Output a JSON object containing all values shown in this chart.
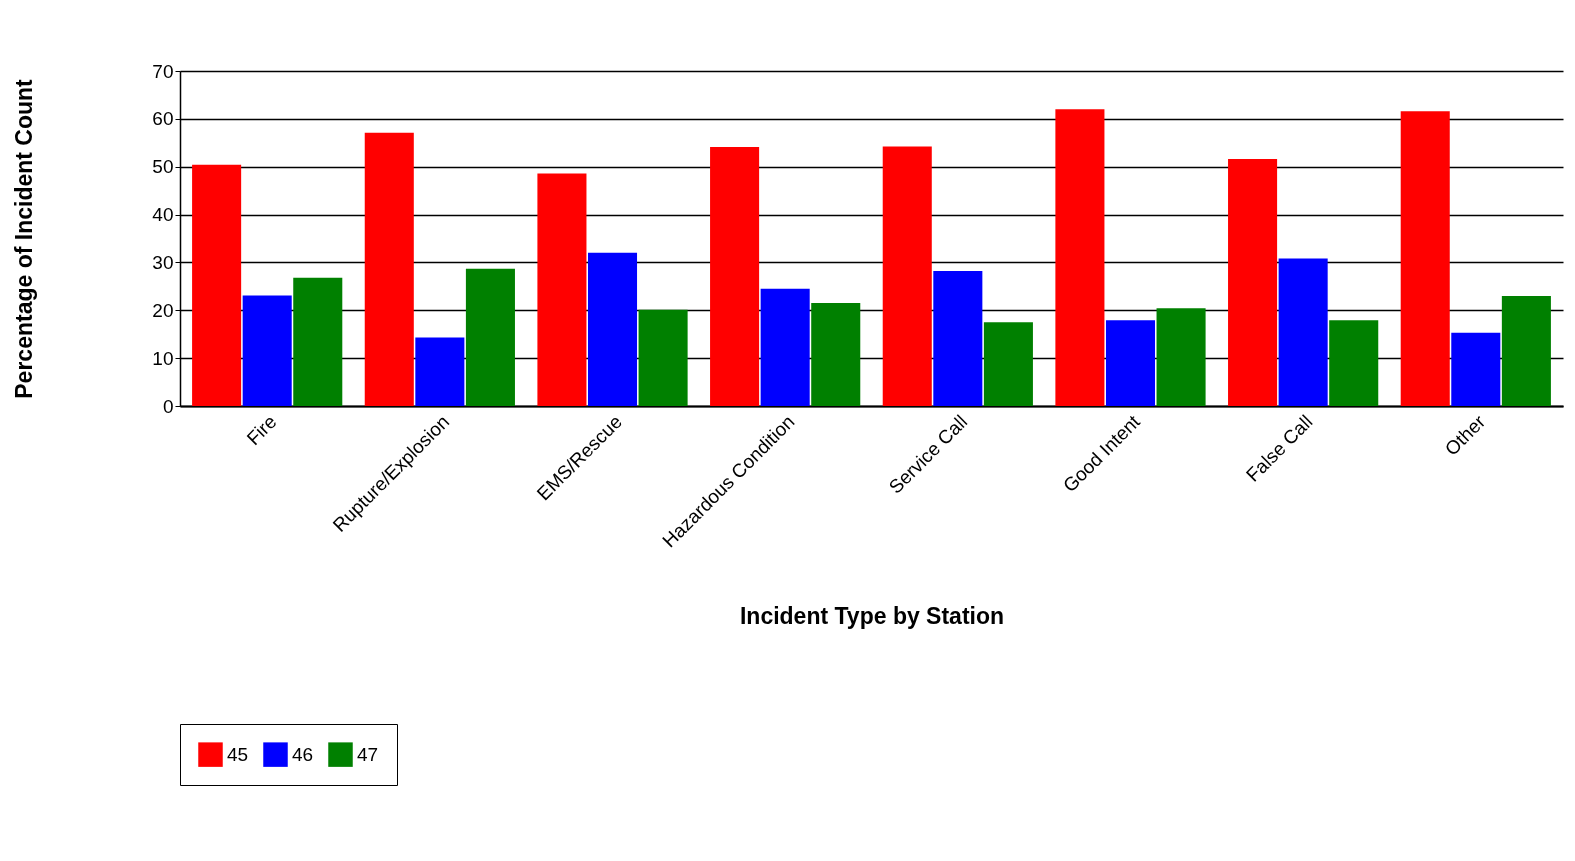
{
  "chart_data": {
    "type": "bar",
    "xlabel": "Incident Type by Station",
    "ylabel": "Percentage of Incident Count",
    "categories": [
      "Fire",
      "Rupture/Explosion",
      "EMS/Rescue",
      "Hazardous Condition",
      "Service Call",
      "Good Intent",
      "False Call",
      "Other"
    ],
    "series": [
      {
        "name": "45",
        "color": "#ff0000",
        "values": [
          50.4,
          57.1,
          48.6,
          54.1,
          54.2,
          62.0,
          51.6,
          61.6
        ]
      },
      {
        "name": "46",
        "color": "#0000ff",
        "values": [
          23.1,
          14.3,
          32.0,
          24.5,
          28.2,
          17.9,
          30.8,
          15.3
        ]
      },
      {
        "name": "47",
        "color": "#008000",
        "values": [
          26.8,
          28.7,
          20.1,
          21.5,
          17.5,
          20.4,
          17.9,
          23.0
        ]
      }
    ],
    "ylim": [
      0,
      70
    ],
    "yticks": [
      0,
      10,
      20,
      30,
      40,
      50,
      60,
      70
    ],
    "grid": "y",
    "legend": "bottom"
  }
}
